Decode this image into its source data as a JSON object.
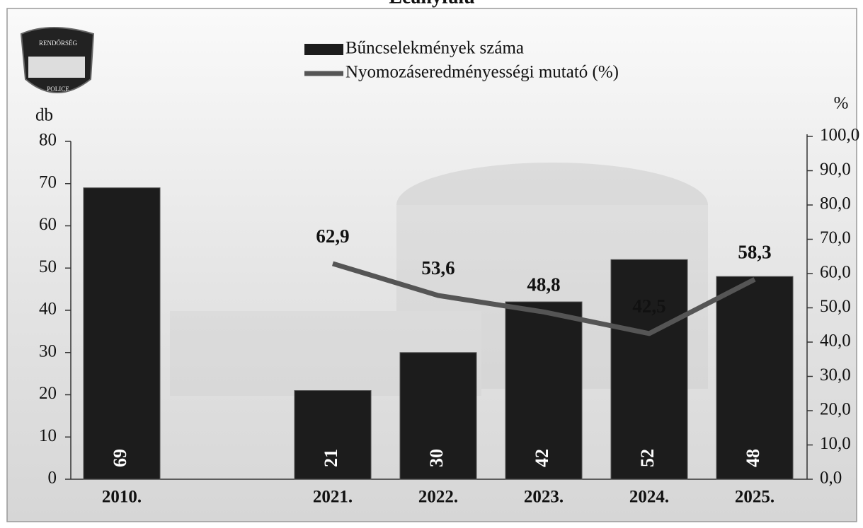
{
  "chart_data": {
    "type": "bar",
    "title": "Leányfalu",
    "logo": {
      "top": "RENDŐRSÉG",
      "bottom": "POLICE"
    },
    "y_label": "db",
    "y2_label": "%",
    "categories": [
      "2010.",
      null,
      "2021.",
      "2022.",
      "2023.",
      "2024.",
      "2025."
    ],
    "series": [
      {
        "name": "Bűncselekmények száma",
        "type": "bar",
        "color": "#1c1c1c",
        "values": [
          69,
          null,
          21,
          30,
          42,
          52,
          48
        ]
      },
      {
        "name": "Nyomozáseredményességi mutató (%)",
        "type": "line",
        "axis": "y2",
        "color": "#555555",
        "values": [
          null,
          null,
          62.9,
          53.6,
          48.8,
          42.5,
          58.3
        ],
        "value_labels": [
          null,
          null,
          "62,9",
          "53,6",
          "48,8",
          "42,5",
          "58,3"
        ]
      }
    ],
    "ylim": [
      0,
      80
    ],
    "yticks": [
      0,
      10,
      20,
      30,
      40,
      50,
      60,
      70,
      80
    ],
    "y2lim": [
      0,
      100
    ],
    "y2ticks": [
      {
        "value": 0,
        "label": "0,0"
      },
      {
        "value": 10,
        "label": "10,0"
      },
      {
        "value": 20,
        "label": "20,0"
      },
      {
        "value": 30,
        "label": "30,0"
      },
      {
        "value": 40,
        "label": "40,0"
      },
      {
        "value": 50,
        "label": "50,0"
      },
      {
        "value": 60,
        "label": "60,0"
      },
      {
        "value": 70,
        "label": "70,0"
      },
      {
        "value": 80,
        "label": "80,0"
      },
      {
        "value": 90,
        "label": "90,0"
      },
      {
        "value": 100,
        "label": "100,0"
      }
    ],
    "grid": false
  }
}
